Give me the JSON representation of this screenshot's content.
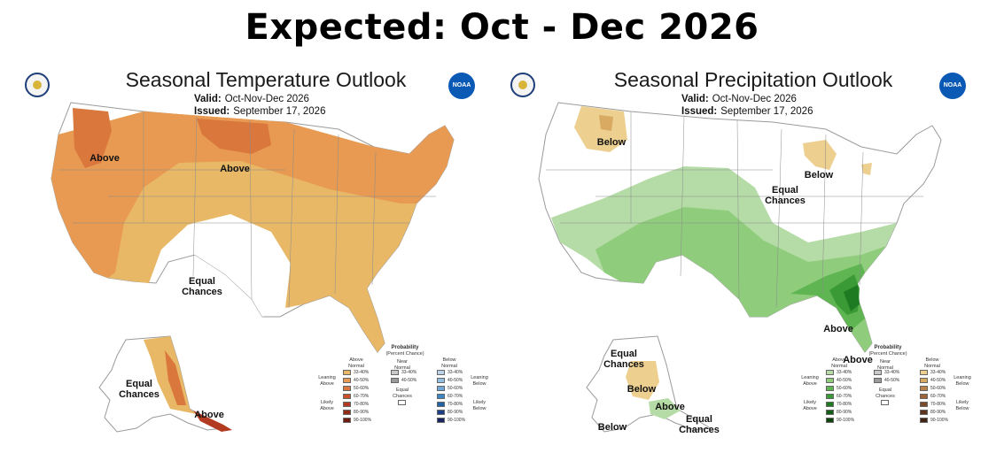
{
  "headline": "Expected: Oct - Dec 2026",
  "temperature": {
    "title": "Seasonal Temperature Outlook",
    "valid_label": "Valid:",
    "valid_value": "Oct-Nov-Dec 2026",
    "issued_label": "Issued:",
    "issued_value": "September 17, 2026",
    "labels": {
      "above_nw": "Above",
      "above_n": "Above",
      "equal": "Equal",
      "chances": "Chances",
      "ak_equal": "Equal",
      "ak_chances": "Chances",
      "ak_above": "Above"
    },
    "legend": {
      "title": "Probability",
      "subtitle": "(Percent Chance)",
      "col_above": "Above",
      "col_above2": "Normal",
      "col_near": "Near",
      "col_near2": "Normal",
      "col_below": "Below",
      "col_below2": "Normal",
      "leaning_above": "Leaning",
      "leaning_above2": "Above",
      "likely_above": "Likely",
      "likely_above2": "Above",
      "leaning_below": "Leaning",
      "leaning_below2": "Below",
      "likely_below": "Likely",
      "likely_below2": "Below",
      "equal": "Equal",
      "equal2": "Chances",
      "ranges": [
        "33-40%",
        "40-50%",
        "50-60%",
        "60-70%",
        "70-80%",
        "80-90%",
        "90-100%"
      ],
      "near_ranges": [
        "33-40%",
        "40-50%"
      ],
      "above_colors": [
        "#e8b867",
        "#e89a52",
        "#d9773d",
        "#c9502b",
        "#b23a20",
        "#922a18",
        "#6f1c10"
      ],
      "below_colors": [
        "#b9d4ea",
        "#93bfe3",
        "#6ea7d8",
        "#3d86c6",
        "#2262a8",
        "#1c3f86",
        "#1a2460"
      ],
      "near_colors": [
        "#c9c9c9",
        "#9a9a9a"
      ]
    }
  },
  "precipitation": {
    "title": "Seasonal Precipitation Outlook",
    "valid_label": "Valid:",
    "valid_value": "Oct-Nov-Dec 2026",
    "issued_label": "Issued:",
    "issued_value": "September 17, 2026",
    "labels": {
      "below_nw": "Below",
      "below_ne": "Below",
      "equal": "Equal",
      "chances": "Chances",
      "above_se": "Above",
      "above_fl": "Above",
      "ak_equal_n": "Equal",
      "ak_chances_n": "Chances",
      "ak_below": "Below",
      "ak_above": "Above",
      "ak_equal_s": "Equal",
      "ak_chances_s": "Chances",
      "ak_below_s": "Below"
    },
    "legend": {
      "title": "Probability",
      "subtitle": "(Percent Chance)",
      "col_above": "Above",
      "col_above2": "Normal",
      "col_near": "Near",
      "col_near2": "Normal",
      "col_below": "Below",
      "col_below2": "Normal",
      "leaning_above": "Leaning",
      "leaning_above2": "Above",
      "likely_above": "Likely",
      "likely_above2": "Above",
      "leaning_below": "Leaning",
      "leaning_below2": "Below",
      "likely_below": "Likely",
      "likely_below2": "Below",
      "equal": "Equal",
      "equal2": "Chances",
      "ranges": [
        "33-40%",
        "40-50%",
        "50-60%",
        "60-70%",
        "70-80%",
        "80-90%",
        "90-100%"
      ],
      "near_ranges": [
        "33-40%",
        "40-50%"
      ],
      "above_colors": [
        "#b5dca6",
        "#8fcd7c",
        "#5fb552",
        "#3a9a35",
        "#1f7b22",
        "#155e18",
        "#0e4310"
      ],
      "below_colors": [
        "#edcf8f",
        "#d9aa62",
        "#b9824a",
        "#9a6338",
        "#7c4a2a",
        "#5e341d",
        "#432314"
      ],
      "near_colors": [
        "#c9c9c9",
        "#9a9a9a"
      ]
    }
  },
  "colors": {
    "temp_lean": "#e8b867",
    "temp_40": "#e89a52",
    "temp_50": "#d9773d",
    "precip_lean": "#b5dca6",
    "precip_40": "#8fcd7c",
    "precip_50": "#5fb552",
    "precip_60": "#3a9a35",
    "precip_70": "#1f7b22",
    "dry_lean": "#edcf8f",
    "dry_40": "#d9aa62"
  }
}
